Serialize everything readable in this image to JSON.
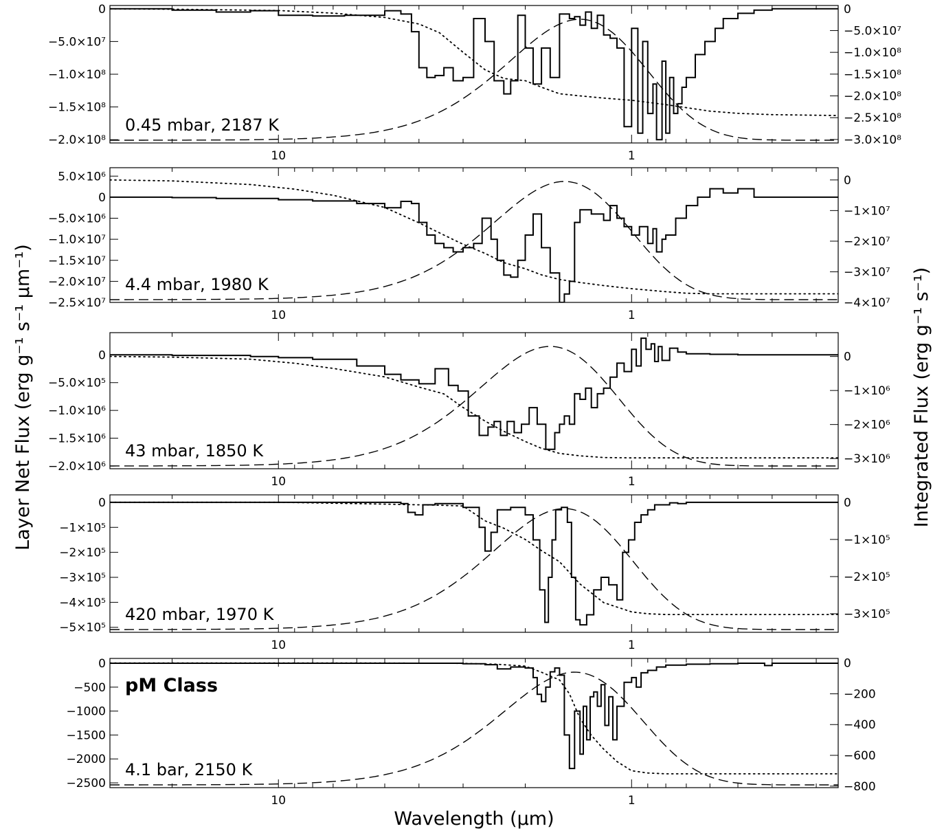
{
  "figure": {
    "xlabel": "Wavelength (μm)",
    "ylabel_left": "Layer Net Flux (erg g⁻¹ s⁻¹ μm⁻¹)",
    "ylabel_right": "Integrated Flux (erg g⁻¹ s⁻¹)"
  },
  "chart_data": [
    {
      "type": "line",
      "label": "0.45 mbar, 2187 K",
      "xscale": "log",
      "xlim": [
        30,
        0.26
      ],
      "x_ticks": [
        10,
        1
      ],
      "x_tick_labels": [
        "10",
        "1"
      ],
      "ylim_left": [
        -205000000.0,
        5000000.0
      ],
      "yticks_left": [
        0,
        -50000000.0,
        -100000000.0,
        -150000000.0,
        -200000000.0
      ],
      "yticks_left_labels": [
        "0",
        "−5.0×10⁷",
        "−1.0×10⁸",
        "−1.5×10⁸",
        "−2.0×10⁸"
      ],
      "ylim_right": [
        -308000000.0,
        7500000.0
      ],
      "yticks_right": [
        0,
        -50000000.0,
        -100000000.0,
        -150000000.0,
        -200000000.0,
        -250000000.0,
        -300000000.0
      ],
      "yticks_right_labels": [
        "0",
        "−5.0×10⁷",
        "−1.0×10⁸",
        "−1.5×10⁸",
        "−2.0×10⁸",
        "−2.5×10⁸",
        "−3.0×10⁸"
      ],
      "net_flux": {
        "x": [
          30,
          20,
          15,
          12,
          10,
          8,
          6.5,
          5,
          4.5,
          4.2,
          4.0,
          3.8,
          3.6,
          3.4,
          3.2,
          3.0,
          2.8,
          2.6,
          2.45,
          2.3,
          2.2,
          2.1,
          2.0,
          1.9,
          1.8,
          1.7,
          1.6,
          1.5,
          1.45,
          1.4,
          1.35,
          1.3,
          1.25,
          1.2,
          1.15,
          1.1,
          1.05,
          1.0,
          0.96,
          0.93,
          0.9,
          0.87,
          0.85,
          0.82,
          0.8,
          0.78,
          0.76,
          0.74,
          0.72,
          0.7,
          0.66,
          0.62,
          0.58,
          0.55,
          0.5,
          0.45,
          0.4,
          0.3,
          0.26
        ],
        "y": [
          0,
          -2000000.0,
          -5000000.0,
          -3000000.0,
          -10000000.0,
          -11000000.0,
          -10000000.0,
          -3000000.0,
          -8000000.0,
          -35000000.0,
          -90000000.0,
          -105000000.0,
          -102000000.0,
          -90000000.0,
          -110000000.0,
          -105000000.0,
          -15000000.0,
          -50000000.0,
          -110000000.0,
          -130000000.0,
          -110000000.0,
          -10000000.0,
          -60000000.0,
          -115000000.0,
          -60000000.0,
          -105000000.0,
          -8000000.0,
          -15000000.0,
          -12000000.0,
          -25000000.0,
          -5000000.0,
          -30000000.0,
          -10000000.0,
          -40000000.0,
          -45000000.0,
          -60000000.0,
          -180000000.0,
          -30000000.0,
          -190000000.0,
          -50000000.0,
          -160000000.0,
          -115000000.0,
          -200000000.0,
          -80000000.0,
          -190000000.0,
          -105000000.0,
          -160000000.0,
          -145000000.0,
          -120000000.0,
          -105000000.0,
          -70000000.0,
          -50000000.0,
          -30000000.0,
          -15000000.0,
          -7000000.0,
          -2000000.0,
          0,
          0,
          0
        ]
      },
      "integrated_flux": {
        "x": [
          30,
          20,
          10,
          7,
          5,
          4,
          3.5,
          3.0,
          2.6,
          2.3,
          2.0,
          1.8,
          1.6,
          1.4,
          1.2,
          1.0,
          0.8,
          0.6,
          0.5,
          0.4,
          0.26
        ],
        "y": [
          0,
          -1000000.0,
          -4000000.0,
          -10000000.0,
          -20000000.0,
          -35000000.0,
          -55000000.0,
          -100000000.0,
          -140000000.0,
          -160000000.0,
          -165000000.0,
          -180000000.0,
          -195000000.0,
          -200000000.0,
          -205000000.0,
          -210000000.0,
          -220000000.0,
          -235000000.0,
          -240000000.0,
          -243000000.0,
          -245000000.0
        ]
      },
      "planck_peak": 1.4
    },
    {
      "type": "line",
      "label": "4.4 mbar, 1980 K",
      "xscale": "log",
      "xlim": [
        30,
        0.26
      ],
      "x_ticks": [
        10,
        1
      ],
      "x_tick_labels": [
        "10",
        "1"
      ],
      "ylim_left": [
        -25000000.0,
        7000000.0
      ],
      "yticks_left": [
        5000000.0,
        0,
        -5000000.0,
        -10000000.0,
        -15000000.0,
        -20000000.0,
        -25000000.0
      ],
      "yticks_left_labels": [
        "5.0×10⁶",
        "0",
        "−5.0×10⁶",
        "−1.0×10⁷",
        "−1.5×10⁷",
        "−2.0×10⁷",
        "−2.5×10⁷"
      ],
      "ylim_right": [
        -40000000.0,
        4000000.0
      ],
      "yticks_right": [
        0,
        -10000000.0,
        -20000000.0,
        -30000000.0,
        -40000000.0
      ],
      "yticks_right_labels": [
        "0",
        "−1×10⁷",
        "−2×10⁷",
        "−3×10⁷",
        "−4×10⁷"
      ],
      "net_flux": {
        "x": [
          30,
          20,
          15,
          10,
          8,
          6,
          5,
          4.5,
          4.2,
          4.0,
          3.8,
          3.6,
          3.4,
          3.2,
          3.0,
          2.8,
          2.65,
          2.5,
          2.4,
          2.3,
          2.2,
          2.1,
          2.0,
          1.9,
          1.8,
          1.7,
          1.6,
          1.55,
          1.5,
          1.45,
          1.4,
          1.3,
          1.2,
          1.15,
          1.1,
          1.05,
          1.0,
          0.95,
          0.9,
          0.87,
          0.85,
          0.82,
          0.8,
          0.75,
          0.7,
          0.65,
          0.6,
          0.55,
          0.5,
          0.45,
          0.26
        ],
        "y": [
          0,
          -100000.0,
          -300000.0,
          -600000.0,
          -900000.0,
          -1500000.0,
          -2500000.0,
          -1000000.0,
          -1500000.0,
          -6000000.0,
          -9000000.0,
          -11000000.0,
          -12000000.0,
          -13000000.0,
          -12000000.0,
          -11000000.0,
          -5000000.0,
          -10000000.0,
          -15000000.0,
          -18500000.0,
          -19000000.0,
          -15000000.0,
          -9000000.0,
          -4000000.0,
          -12000000.0,
          -18000000.0,
          -25000000.0,
          -23000000.0,
          -20000000.0,
          -6000000.0,
          -3000000.0,
          -4000000.0,
          -5500000.0,
          -2000000.0,
          -5000000.0,
          -7000000.0,
          -9000000.0,
          -7000000.0,
          -11000000.0,
          -7500000.0,
          -13000000.0,
          -10000000.0,
          -9000000.0,
          -5000000.0,
          -2000000.0,
          0,
          2000000.0,
          1000000.0,
          2000000.0,
          0,
          0
        ]
      },
      "integrated_flux": {
        "x": [
          30,
          20,
          12,
          9,
          7,
          5,
          4,
          3.4,
          3.0,
          2.6,
          2.3,
          2.0,
          1.8,
          1.6,
          1.4,
          1.2,
          1.0,
          0.8,
          0.7,
          0.6,
          0.26
        ],
        "y": [
          0,
          -300000.0,
          -1500000.0,
          -3000000.0,
          -5000000.0,
          -9000000.0,
          -14000000.0,
          -18000000.0,
          -21000000.0,
          -24000000.0,
          -27000000.0,
          -29000000.0,
          -31000000.0,
          -32500000.0,
          -33500000.0,
          -34500000.0,
          -35500000.0,
          -36500000.0,
          -37000000.0,
          -37200000.0,
          -37200000.0
        ]
      },
      "planck_peak": 1.55
    },
    {
      "type": "line",
      "label": "43 mbar, 1850 K",
      "xscale": "log",
      "xlim": [
        30,
        0.26
      ],
      "x_ticks": [
        10,
        1
      ],
      "x_tick_labels": [
        "10",
        "1"
      ],
      "ylim_left": [
        -2050000.0,
        400000.0
      ],
      "yticks_left": [
        0,
        -500000.0,
        -1000000.0,
        -1500000.0,
        -2000000.0
      ],
      "yticks_left_labels": [
        "0",
        "−5.0×10⁵",
        "−1.0×10⁶",
        "−1.5×10⁶",
        "−2.0×10⁶"
      ],
      "ylim_right": [
        -3300000.0,
        700000.0
      ],
      "yticks_right": [
        0,
        -1000000.0,
        -2000000.0,
        -3000000.0
      ],
      "yticks_right_labels": [
        "0",
        "−1×10⁶",
        "−2×10⁶",
        "−3×10⁶"
      ],
      "net_flux": {
        "x": [
          30,
          20,
          12,
          10,
          8,
          6,
          5,
          4.5,
          4.0,
          3.6,
          3.3,
          3.1,
          2.9,
          2.7,
          2.55,
          2.45,
          2.35,
          2.25,
          2.15,
          2.05,
          1.95,
          1.85,
          1.75,
          1.65,
          1.6,
          1.55,
          1.5,
          1.45,
          1.4,
          1.35,
          1.3,
          1.25,
          1.2,
          1.15,
          1.1,
          1.05,
          1.0,
          0.97,
          0.94,
          0.91,
          0.88,
          0.86,
          0.84,
          0.82,
          0.78,
          0.74,
          0.7,
          0.6,
          0.5,
          0.4,
          0.26
        ],
        "y": [
          0,
          -10000.0,
          -30000.0,
          -50000.0,
          -80000.0,
          -200000.0,
          -350000.0,
          -450000.0,
          -520000.0,
          -250000.0,
          -550000.0,
          -650000.0,
          -1100000.0,
          -1450000.0,
          -1300000.0,
          -1200000.0,
          -1450000.0,
          -1200000.0,
          -1400000.0,
          -1250000.0,
          -950000.0,
          -1250000.0,
          -1700000.0,
          -1400000.0,
          -1250000.0,
          -1100000.0,
          -1250000.0,
          -700000.0,
          -800000.0,
          -600000.0,
          -950000.0,
          -700000.0,
          -600000.0,
          -400000.0,
          -150000.0,
          -300000.0,
          100000.0,
          -200000.0,
          300000.0,
          100000.0,
          200000.0,
          -120000.0,
          150000.0,
          -100000.0,
          120000.0,
          50000.0,
          20000.0,
          10000.0,
          0,
          0,
          0
        ]
      },
      "integrated_flux": {
        "x": [
          30,
          20,
          12,
          9,
          7,
          5,
          4,
          3.4,
          3.0,
          2.6,
          2.3,
          2.0,
          1.8,
          1.6,
          1.4,
          1.2,
          1.0,
          0.8,
          0.6,
          0.26
        ],
        "y": [
          0,
          -20000.0,
          -80000.0,
          -200000.0,
          -350000.0,
          -600000.0,
          -900000.0,
          -1100000.0,
          -1500000.0,
          -1900000.0,
          -2200000.0,
          -2500000.0,
          -2700000.0,
          -2850000.0,
          -2920000.0,
          -2970000.0,
          -2980000.0,
          -2980000.0,
          -2980000.0,
          -2980000.0
        ]
      },
      "planck_peak": 1.7
    },
    {
      "type": "line",
      "label": "420 mbar, 1970 K",
      "xscale": "log",
      "xlim": [
        30,
        0.26
      ],
      "x_ticks": [
        10,
        1
      ],
      "x_tick_labels": [
        "10",
        "1"
      ],
      "ylim_left": [
        -520000.0,
        30000.0
      ],
      "yticks_left": [
        0,
        -100000.0,
        -200000.0,
        -300000.0,
        -400000.0,
        -500000.0
      ],
      "yticks_left_labels": [
        "0",
        "−1×10⁵",
        "−2×10⁵",
        "−3×10⁵",
        "−4×10⁵",
        "−5×10⁵"
      ],
      "ylim_right": [
        -350000.0,
        20000.0
      ],
      "yticks_right": [
        0,
        -100000.0,
        -200000.0,
        -300000.0
      ],
      "yticks_right_labels": [
        "0",
        "−1×10⁵",
        "−2×10⁵",
        "−3×10⁵"
      ],
      "net_flux": {
        "x": [
          30,
          10,
          5,
          4.5,
          4.3,
          4.1,
          3.9,
          3.6,
          3.0,
          2.7,
          2.6,
          2.5,
          2.4,
          2.2,
          2.0,
          1.9,
          1.82,
          1.76,
          1.72,
          1.68,
          1.64,
          1.58,
          1.52,
          1.48,
          1.44,
          1.4,
          1.34,
          1.28,
          1.22,
          1.16,
          1.1,
          1.06,
          1.02,
          0.98,
          0.94,
          0.9,
          0.86,
          0.82,
          0.78,
          0.74,
          0.7,
          0.6,
          0.5,
          0.26
        ],
        "y": [
          0,
          0,
          0,
          -5000.0,
          -40000.0,
          -50000.0,
          -10000.0,
          -5000.0,
          -20000.0,
          -100000.0,
          -195000.0,
          -120000.0,
          -30000.0,
          -20000.0,
          -50000.0,
          -150000.0,
          -350000.0,
          -480000.0,
          -300000.0,
          -150000.0,
          -30000.0,
          -20000.0,
          -80000.0,
          -300000.0,
          -470000.0,
          -490000.0,
          -450000.0,
          -350000.0,
          -300000.0,
          -330000.0,
          -390000.0,
          -200000.0,
          -150000.0,
          -80000.0,
          -50000.0,
          -30000.0,
          -10000.0,
          -10000.0,
          -2000.0,
          -5000.0,
          0,
          0,
          0,
          0
        ]
      },
      "integrated_flux": {
        "x": [
          30,
          10,
          5,
          3.5,
          3.0,
          2.6,
          2.3,
          2.0,
          1.8,
          1.6,
          1.4,
          1.2,
          1.0,
          0.9,
          0.8,
          0.7,
          0.26
        ],
        "y": [
          0,
          0,
          -5000.0,
          -8000.0,
          -10000.0,
          -50000.0,
          -70000.0,
          -100000.0,
          -130000.0,
          -160000.0,
          -220000.0,
          -270000.0,
          -295000.0,
          -300000.0,
          -302000.0,
          -302000.0,
          -302000.0
        ]
      },
      "planck_peak": 1.55
    },
    {
      "type": "line",
      "label": "4.1 bar, 2150 K",
      "class_label": "pM Class",
      "xscale": "log",
      "xlim": [
        30,
        0.26
      ],
      "x_ticks": [
        10,
        1
      ],
      "x_tick_labels": [
        "10",
        "1"
      ],
      "ylim_left": [
        -2600,
        100
      ],
      "yticks_left": [
        0,
        -500,
        -1000,
        -1500,
        -2000,
        -2500
      ],
      "yticks_left_labels": [
        "0",
        "−500",
        "−1000",
        "−1500",
        "−2000",
        "−2500"
      ],
      "ylim_right": [
        -810,
        30
      ],
      "yticks_right": [
        0,
        -200,
        -400,
        -600,
        -800
      ],
      "yticks_right_labels": [
        "0",
        "−200",
        "−400",
        "−600",
        "−800"
      ],
      "net_flux": {
        "x": [
          30,
          10,
          4.5,
          3.0,
          2.6,
          2.4,
          2.2,
          2.0,
          1.9,
          1.85,
          1.8,
          1.75,
          1.7,
          1.65,
          1.6,
          1.55,
          1.5,
          1.45,
          1.4,
          1.37,
          1.34,
          1.31,
          1.28,
          1.25,
          1.22,
          1.19,
          1.16,
          1.13,
          1.1,
          1.05,
          1.0,
          0.97,
          0.94,
          0.9,
          0.85,
          0.8,
          0.7,
          0.6,
          0.5,
          0.42,
          0.4,
          0.3,
          0.26
        ],
        "y": [
          0,
          0,
          0,
          -10,
          -30,
          -120,
          -80,
          -100,
          -300,
          -650,
          -800,
          -500,
          -180,
          -100,
          -250,
          -1500,
          -2200,
          -1000,
          -1900,
          -900,
          -1600,
          -700,
          -600,
          -900,
          -450,
          -1300,
          -700,
          -1600,
          -900,
          -400,
          -300,
          -500,
          -200,
          -150,
          -80,
          -40,
          -20,
          -10,
          0,
          -50,
          0,
          0,
          0
        ]
      },
      "integrated_flux": {
        "x": [
          30,
          10,
          5,
          3.0,
          2.4,
          2.0,
          1.8,
          1.6,
          1.5,
          1.4,
          1.3,
          1.2,
          1.1,
          1.0,
          0.9,
          0.8,
          0.6,
          0.26
        ],
        "y": [
          0,
          0,
          0,
          -2,
          -8,
          -20,
          -60,
          -110,
          -200,
          -360,
          -470,
          -560,
          -640,
          -700,
          -715,
          -720,
          -720,
          -720
        ]
      },
      "planck_peak": 1.45
    }
  ]
}
